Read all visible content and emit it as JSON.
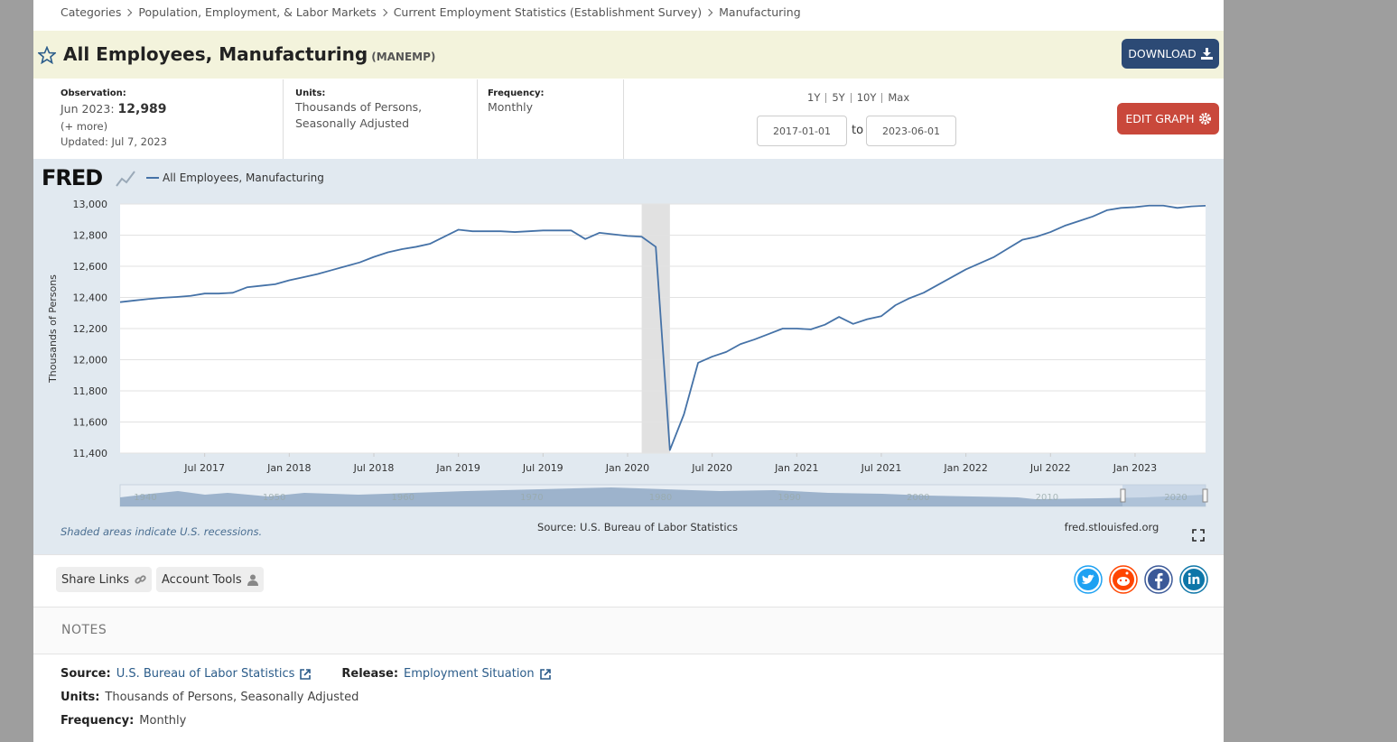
{
  "breadcrumb": [
    "Categories",
    "Population, Employment, & Labor Markets",
    "Current Employment Statistics (Establishment Survey)",
    "Manufacturing"
  ],
  "header": {
    "title": "All Employees, Manufacturing",
    "series_id": "(MANEMP)",
    "download": "DOWNLOAD"
  },
  "observation": {
    "label": "Observation:",
    "date": "Jun 2023:",
    "value": "12,989",
    "more": "(+ more)",
    "updated": "Updated: Jul 7, 2023"
  },
  "units": {
    "label": "Units:",
    "value": "Thousands of Persons, Seasonally Adjusted"
  },
  "frequency": {
    "label": "Frequency:",
    "value": "Monthly"
  },
  "range": {
    "buttons": [
      "1Y",
      "5Y",
      "10Y",
      "Max"
    ],
    "start": "2017-01-01",
    "to": "to",
    "end": "2023-06-01",
    "edit": "EDIT GRAPH"
  },
  "chart_data": {
    "type": "line",
    "logo": "FRED",
    "ylabel": "Thousands of Persons",
    "grid": true,
    "x": [
      "2017-01",
      "2017-02",
      "2017-03",
      "2017-04",
      "2017-05",
      "2017-06",
      "2017-07",
      "2017-08",
      "2017-09",
      "2017-10",
      "2017-11",
      "2017-12",
      "2018-01",
      "2018-02",
      "2018-03",
      "2018-04",
      "2018-05",
      "2018-06",
      "2018-07",
      "2018-08",
      "2018-09",
      "2018-10",
      "2018-11",
      "2018-12",
      "2019-01",
      "2019-02",
      "2019-03",
      "2019-04",
      "2019-05",
      "2019-06",
      "2019-07",
      "2019-08",
      "2019-09",
      "2019-10",
      "2019-11",
      "2019-12",
      "2020-01",
      "2020-02",
      "2020-03",
      "2020-04",
      "2020-05",
      "2020-06",
      "2020-07",
      "2020-08",
      "2020-09",
      "2020-10",
      "2020-11",
      "2020-12",
      "2021-01",
      "2021-02",
      "2021-03",
      "2021-04",
      "2021-05",
      "2021-06",
      "2021-07",
      "2021-08",
      "2021-09",
      "2021-10",
      "2021-11",
      "2021-12",
      "2022-01",
      "2022-02",
      "2022-03",
      "2022-04",
      "2022-05",
      "2022-06",
      "2022-07",
      "2022-08",
      "2022-09",
      "2022-10",
      "2022-11",
      "2022-12",
      "2023-01",
      "2023-02",
      "2023-03",
      "2023-04",
      "2023-05",
      "2023-06"
    ],
    "series": [
      {
        "name": "All Employees, Manufacturing",
        "color": "#4572a7",
        "values": [
          12370,
          12380,
          12390,
          12398,
          12403,
          12410,
          12425,
          12425,
          12430,
          12465,
          12475,
          12485,
          12510,
          12530,
          12550,
          12575,
          12600,
          12625,
          12660,
          12690,
          12710,
          12725,
          12745,
          12790,
          12835,
          12825,
          12825,
          12825,
          12820,
          12825,
          12830,
          12830,
          12830,
          12775,
          12815,
          12805,
          12795,
          12790,
          12725,
          11420,
          11650,
          11980,
          12020,
          12050,
          12100,
          12130,
          12165,
          12200,
          12200,
          12195,
          12225,
          12275,
          12230,
          12260,
          12280,
          12350,
          12395,
          12430,
          12480,
          12530,
          12580,
          12620,
          12660,
          12715,
          12770,
          12790,
          12820,
          12860,
          12890,
          12920,
          12960,
          12975,
          12980,
          12990,
          12990,
          12975,
          12985,
          12989
        ]
      }
    ],
    "xlim": [
      "2017-01",
      "2023-06"
    ],
    "xticks": [
      {
        "value": "2017-07",
        "label": "Jul 2017"
      },
      {
        "value": "2018-01",
        "label": "Jan 2018"
      },
      {
        "value": "2018-07",
        "label": "Jul 2018"
      },
      {
        "value": "2019-01",
        "label": "Jan 2019"
      },
      {
        "value": "2019-07",
        "label": "Jul 2019"
      },
      {
        "value": "2020-01",
        "label": "Jan 2020"
      },
      {
        "value": "2020-07",
        "label": "Jul 2020"
      },
      {
        "value": "2021-01",
        "label": "Jan 2021"
      },
      {
        "value": "2021-07",
        "label": "Jul 2021"
      },
      {
        "value": "2022-01",
        "label": "Jan 2022"
      },
      {
        "value": "2022-07",
        "label": "Jul 2022"
      },
      {
        "value": "2023-01",
        "label": "Jan 2023"
      }
    ],
    "ylim": [
      11400,
      13000
    ],
    "yticks": [
      {
        "value": 11400,
        "label": "11,400"
      },
      {
        "value": 11600,
        "label": "11,600"
      },
      {
        "value": 11800,
        "label": "11,800"
      },
      {
        "value": 12000,
        "label": "12,000"
      },
      {
        "value": 12200,
        "label": "12,200"
      },
      {
        "value": 12400,
        "label": "12,400"
      },
      {
        "value": 12600,
        "label": "12,600"
      },
      {
        "value": 12800,
        "label": "12,800"
      },
      {
        "value": 13000,
        "label": "13,000"
      }
    ],
    "recessions": [
      {
        "start": "2020-02",
        "end": "2020-04"
      }
    ],
    "navigator_labels": [
      "1940",
      "1950",
      "1960",
      "1970",
      "1980",
      "1990",
      "2000",
      "2010",
      "2020"
    ],
    "recession_note": "Shaded areas indicate U.S. recessions.",
    "source": "Source: U.S. Bureau of Labor Statistics",
    "site": "fred.stlouisfed.org"
  },
  "actions": {
    "share": "Share Links",
    "account": "Account Tools"
  },
  "notes": {
    "heading": "NOTES",
    "source_label": "Source:",
    "source": "U.S. Bureau of Labor Statistics",
    "release_label": "Release:",
    "release": "Employment Situation",
    "units_label": "Units:",
    "units": "Thousands of Persons, Seasonally Adjusted",
    "frequency_label": "Frequency:",
    "frequency": "Monthly"
  }
}
